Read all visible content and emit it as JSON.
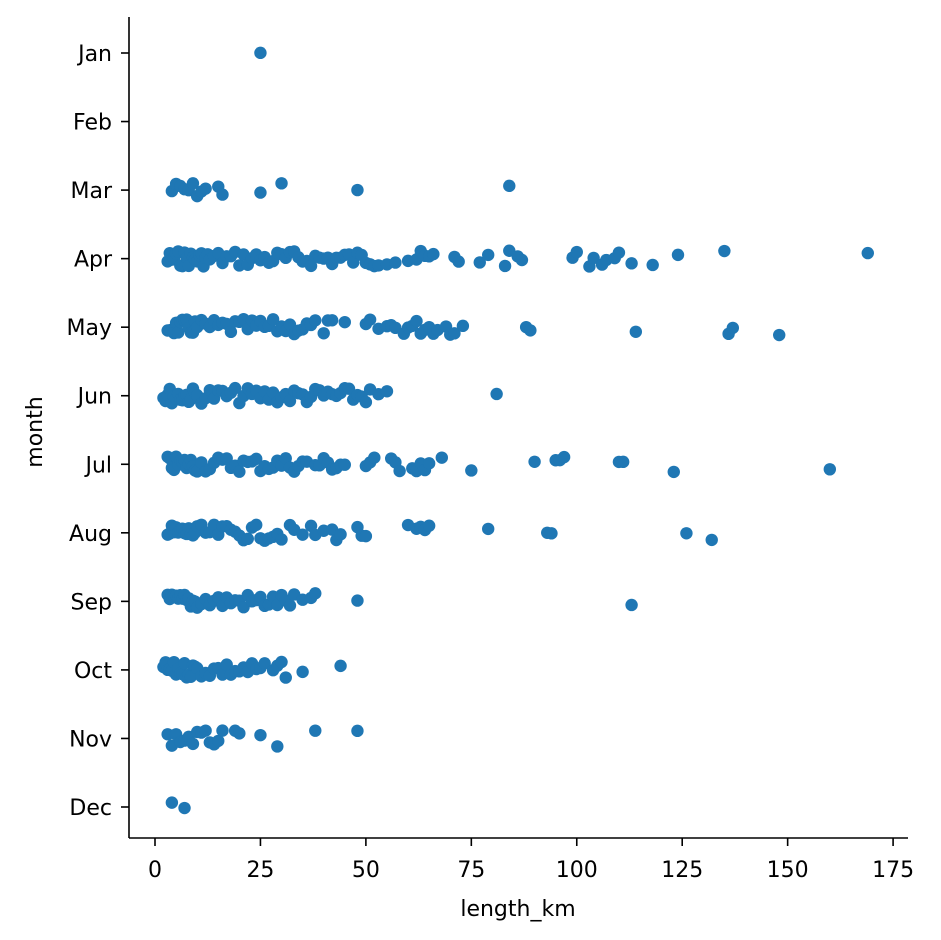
{
  "chart_data": {
    "type": "scatter",
    "title": "",
    "xlabel": "length_km",
    "ylabel": "month",
    "xlim": [
      -4,
      178
    ],
    "xticks": [
      0,
      25,
      50,
      75,
      100,
      125,
      150,
      175
    ],
    "categories": [
      "Jan",
      "Feb",
      "Mar",
      "Apr",
      "May",
      "Jun",
      "Jul",
      "Aug",
      "Sep",
      "Oct",
      "Nov",
      "Dec"
    ],
    "color": "#1f77b4",
    "grid": false,
    "series": [
      {
        "category": "Jan",
        "x": [
          25
        ]
      },
      {
        "category": "Feb",
        "x": []
      },
      {
        "category": "Mar",
        "x": [
          4,
          5,
          6,
          7,
          8,
          9,
          10,
          11,
          12,
          15,
          16,
          25,
          30,
          48,
          84
        ]
      },
      {
        "category": "Apr",
        "x": [
          3,
          3.5,
          4,
          4.5,
          5,
          5.5,
          6,
          6.5,
          7,
          7.5,
          8,
          8.5,
          9,
          9.5,
          10,
          10.5,
          11,
          11.5,
          12,
          12.5,
          13,
          14,
          15,
          16,
          17,
          18,
          19,
          20,
          21,
          22,
          23,
          24,
          25,
          26,
          27,
          28,
          29,
          30,
          31,
          32,
          33,
          34,
          35,
          36,
          37,
          38,
          39,
          40,
          41,
          42,
          43,
          44,
          45,
          46,
          47,
          48,
          49,
          50,
          51,
          52,
          53,
          55,
          57,
          60,
          62,
          63,
          64,
          65,
          66,
          71,
          72,
          77,
          79,
          83,
          84,
          86,
          87,
          99,
          100,
          103,
          104,
          106,
          107,
          109,
          110,
          113,
          118,
          124,
          135,
          169
        ]
      },
      {
        "category": "May",
        "x": [
          3,
          3.5,
          4,
          4.5,
          5,
          5.5,
          6,
          6.5,
          7,
          7.5,
          8,
          8.5,
          9,
          9.5,
          10,
          11,
          12,
          13,
          14,
          15,
          16,
          17,
          18,
          19,
          20,
          21,
          22,
          23,
          24,
          25,
          26,
          27,
          28,
          29,
          30,
          31,
          32,
          33,
          34,
          35,
          36,
          37,
          38,
          40,
          41,
          42,
          45,
          50,
          51,
          53,
          55,
          56,
          57,
          59,
          60,
          61,
          62,
          63,
          64,
          65,
          66,
          67,
          69,
          70,
          71,
          73,
          88,
          89,
          114,
          136,
          137,
          148
        ]
      },
      {
        "category": "Jun",
        "x": [
          2,
          2.5,
          3,
          3.5,
          4,
          4.5,
          5,
          5.5,
          6,
          6.5,
          7,
          7.5,
          8,
          8.5,
          9,
          9.5,
          10,
          11,
          12,
          13,
          14,
          15,
          16,
          17,
          18,
          19,
          20,
          21,
          22,
          23,
          24,
          25,
          26,
          27,
          28,
          29,
          30,
          31,
          32,
          33,
          34,
          35,
          36,
          37,
          38,
          39,
          40,
          41,
          42,
          43,
          44,
          45,
          46,
          47,
          48,
          49,
          50,
          51,
          53,
          55,
          81
        ]
      },
      {
        "category": "Jul",
        "x": [
          3,
          3.5,
          4,
          4.5,
          5,
          5.5,
          6,
          6.5,
          7,
          7.5,
          8,
          8.5,
          9,
          9.5,
          10,
          11,
          12,
          13,
          14,
          15,
          16,
          17,
          18,
          19,
          20,
          21,
          22,
          23,
          24,
          25,
          26,
          27,
          28,
          29,
          30,
          31,
          32,
          33,
          34,
          35,
          36,
          38,
          39,
          40,
          41,
          42,
          43,
          44,
          45,
          50,
          51,
          52,
          56,
          57,
          58,
          61,
          62,
          63,
          64,
          65,
          68,
          75,
          90,
          95,
          96,
          97,
          110,
          111,
          123,
          160
        ]
      },
      {
        "category": "Aug",
        "x": [
          3,
          3.5,
          4,
          4.5,
          5,
          5.5,
          6,
          6.5,
          7,
          7.5,
          8,
          8.5,
          9,
          9.5,
          10,
          11,
          12,
          13,
          14,
          15,
          16,
          17,
          18,
          19,
          20,
          21,
          22,
          23,
          24,
          25,
          26,
          27,
          28,
          29,
          30,
          32,
          33,
          35,
          37,
          38,
          40,
          42,
          43,
          44,
          48,
          49,
          50,
          60,
          62,
          63,
          64,
          65,
          79,
          93,
          94,
          126,
          132
        ]
      },
      {
        "category": "Sep",
        "x": [
          3,
          3.5,
          4,
          4.5,
          5,
          5.5,
          6,
          6.5,
          7,
          7.5,
          8,
          8.5,
          9,
          9.5,
          10,
          11,
          12,
          13,
          14,
          15,
          16,
          17,
          18,
          19,
          20,
          21,
          22,
          23,
          24,
          25,
          26,
          27,
          28,
          29,
          30,
          31,
          32,
          33,
          35,
          37,
          38,
          48,
          113
        ]
      },
      {
        "category": "Oct",
        "x": [
          2,
          2.5,
          3,
          3.5,
          4,
          4.5,
          5,
          5.5,
          6,
          6.5,
          7,
          7.5,
          8,
          8.5,
          9,
          9.5,
          10,
          11,
          12,
          13,
          14,
          15,
          16,
          17,
          18,
          19,
          20,
          21,
          22,
          23,
          24,
          25,
          26,
          28,
          29,
          30,
          31,
          35,
          44
        ]
      },
      {
        "category": "Nov",
        "x": [
          3,
          4,
          5,
          6,
          7,
          8,
          9,
          10,
          11,
          12,
          13,
          14,
          15,
          16,
          19,
          20,
          25,
          29,
          38,
          48
        ]
      },
      {
        "category": "Dec",
        "x": [
          4,
          7
        ]
      }
    ]
  }
}
